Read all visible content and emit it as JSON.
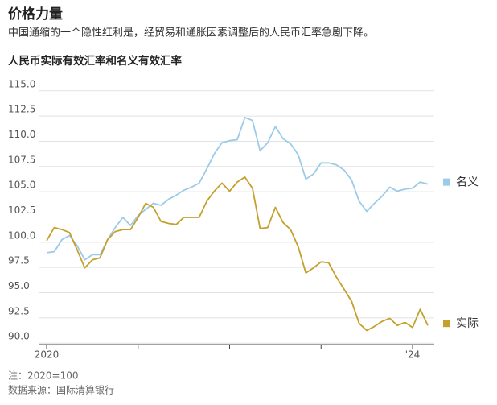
{
  "chart_data": {
    "type": "line",
    "title": "价格力量",
    "subtitle": "中国通缩的一个隐性红利是，经贸易和通胀因素调整后的人民币汇率急剧下降。",
    "chart_title": "人民币实际有效汇率和名义有效汇率",
    "notes": [
      "注：2020=100",
      "数据来源：国际清算银行"
    ],
    "categories": [
      "2020",
      null,
      null,
      null,
      null,
      null,
      null,
      null,
      null,
      null,
      null,
      null,
      null,
      null,
      null,
      null,
      null,
      null,
      null,
      null,
      null,
      null,
      null,
      null,
      null,
      null,
      null,
      null,
      null,
      null,
      null,
      null,
      null,
      null,
      null,
      null,
      null,
      null,
      null,
      null,
      null,
      null,
      null,
      null,
      null,
      null,
      null,
      null,
      "'24",
      null,
      null
    ],
    "series": [
      {
        "name": "名义",
        "color": "#9ccbe8",
        "values": [
          98.4,
          98.5,
          99.7,
          100.1,
          99.1,
          97.7,
          98.2,
          98.2,
          99.7,
          100.9,
          101.9,
          101.1,
          102.1,
          102.7,
          103.3,
          103.1,
          103.7,
          104.1,
          104.6,
          104.9,
          105.3,
          106.7,
          108.2,
          109.3,
          109.5,
          109.6,
          111.8,
          111.5,
          108.5,
          109.3,
          110.9,
          109.7,
          109.2,
          108.1,
          105.7,
          106.2,
          107.3,
          107.3,
          107.1,
          106.6,
          105.6,
          103.5,
          102.5,
          103.3,
          104.0,
          104.9,
          104.5,
          104.7,
          104.8,
          105.4,
          105.2
        ]
      },
      {
        "name": "实际",
        "color": "#c4a12c",
        "values": [
          99.6,
          100.9,
          100.7,
          100.4,
          98.7,
          96.9,
          97.7,
          97.9,
          99.7,
          100.5,
          100.7,
          100.7,
          101.9,
          103.3,
          102.9,
          101.5,
          101.3,
          101.2,
          101.9,
          101.9,
          101.9,
          103.5,
          104.5,
          105.3,
          104.5,
          105.4,
          105.9,
          104.8,
          100.8,
          100.9,
          102.9,
          101.4,
          100.7,
          99.0,
          96.4,
          96.9,
          97.5,
          97.4,
          96.0,
          94.8,
          93.6,
          91.4,
          90.7,
          91.1,
          91.6,
          91.9,
          91.2,
          91.5,
          91.0,
          92.8,
          91.2
        ]
      }
    ],
    "ylim": [
      89.3,
      115.3
    ],
    "yticks": [
      {
        "value": 90,
        "label": "90.0"
      },
      {
        "value": 92.5,
        "label": "92.5"
      },
      {
        "value": 95,
        "label": "95.0"
      },
      {
        "value": 97.5,
        "label": "97.5"
      },
      {
        "value": 100,
        "label": "100.0"
      },
      {
        "value": 102.5,
        "label": "102.5"
      },
      {
        "value": 105,
        "label": "105.0"
      },
      {
        "value": 107.5,
        "label": "107.5"
      },
      {
        "value": 110,
        "label": "110.0"
      },
      {
        "value": 112.5,
        "label": "112.5"
      },
      {
        "value": 115,
        "label": "115.0"
      }
    ],
    "grid": true
  }
}
